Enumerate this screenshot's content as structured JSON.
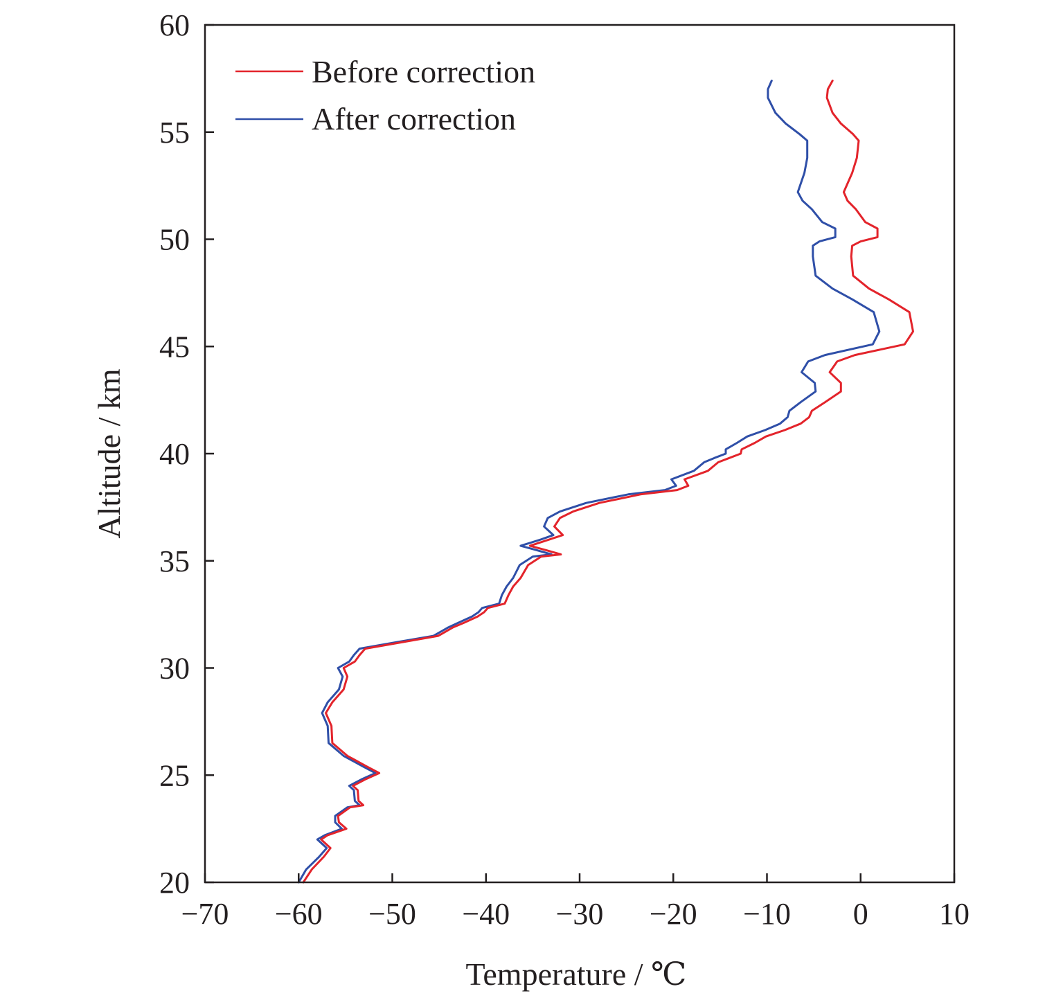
{
  "chart_data": {
    "type": "line",
    "xlabel": "Temperature / ℃",
    "ylabel": "Altitude / km",
    "xlim": [
      -70,
      10
    ],
    "ylim": [
      20,
      60
    ],
    "xticks": [
      "−70",
      "−60",
      "−50",
      "−40",
      "−30",
      "−20",
      "−10",
      "0",
      "10"
    ],
    "yticks": [
      "20",
      "25",
      "30",
      "35",
      "40",
      "45",
      "50",
      "55",
      "60"
    ],
    "legend": "top-left",
    "grid": false,
    "series": [
      {
        "name": "Before correction",
        "color": "#e3242b",
        "points": [
          [
            -59.5,
            20.0
          ],
          [
            -58.6,
            20.6
          ],
          [
            -57.3,
            21.2
          ],
          [
            -56.6,
            21.6
          ],
          [
            -57.6,
            22.0
          ],
          [
            -56.9,
            22.2
          ],
          [
            -54.9,
            22.5
          ],
          [
            -55.7,
            22.8
          ],
          [
            -55.8,
            23.1
          ],
          [
            -54.5,
            23.5
          ],
          [
            -53.1,
            23.6
          ],
          [
            -53.6,
            23.8
          ],
          [
            -53.7,
            24.3
          ],
          [
            -54.2,
            24.5
          ],
          [
            -52.9,
            24.8
          ],
          [
            -51.4,
            25.1
          ],
          [
            -52.7,
            25.4
          ],
          [
            -54.8,
            25.9
          ],
          [
            -56.4,
            26.5
          ],
          [
            -56.5,
            27.3
          ],
          [
            -57.1,
            27.9
          ],
          [
            -56.4,
            28.4
          ],
          [
            -55.2,
            29.0
          ],
          [
            -54.8,
            29.6
          ],
          [
            -55.2,
            30.0
          ],
          [
            -54.0,
            30.3
          ],
          [
            -53.5,
            30.6
          ],
          [
            -52.9,
            30.9
          ],
          [
            -49.0,
            31.2
          ],
          [
            -45.1,
            31.5
          ],
          [
            -43.5,
            31.9
          ],
          [
            -42.4,
            32.1
          ],
          [
            -40.9,
            32.4
          ],
          [
            -40.2,
            32.6
          ],
          [
            -39.8,
            32.8
          ],
          [
            -38.0,
            33.0
          ],
          [
            -37.6,
            33.4
          ],
          [
            -37.1,
            33.8
          ],
          [
            -36.3,
            34.2
          ],
          [
            -35.5,
            34.8
          ],
          [
            -34.1,
            35.2
          ],
          [
            -32.0,
            35.3
          ],
          [
            -33.6,
            35.5
          ],
          [
            -35.3,
            35.7
          ],
          [
            -33.2,
            36.0
          ],
          [
            -31.8,
            36.2
          ],
          [
            -32.7,
            36.6
          ],
          [
            -32.1,
            37.0
          ],
          [
            -30.7,
            37.3
          ],
          [
            -27.9,
            37.7
          ],
          [
            -23.5,
            38.1
          ],
          [
            -19.6,
            38.3
          ],
          [
            -18.4,
            38.5
          ],
          [
            -18.8,
            38.8
          ],
          [
            -16.3,
            39.2
          ],
          [
            -15.2,
            39.6
          ],
          [
            -14.0,
            39.8
          ],
          [
            -12.8,
            40.0
          ],
          [
            -12.7,
            40.2
          ],
          [
            -11.3,
            40.5
          ],
          [
            -10.1,
            40.8
          ],
          [
            -8.1,
            41.1
          ],
          [
            -6.4,
            41.4
          ],
          [
            -5.5,
            41.7
          ],
          [
            -5.2,
            42.0
          ],
          [
            -3.8,
            42.4
          ],
          [
            -2.1,
            42.9
          ],
          [
            -2.1,
            43.3
          ],
          [
            -3.3,
            43.8
          ],
          [
            -2.5,
            44.3
          ],
          [
            -0.6,
            44.6
          ],
          [
            4.7,
            45.1
          ],
          [
            5.6,
            45.7
          ],
          [
            5.2,
            46.6
          ],
          [
            3.0,
            47.2
          ],
          [
            0.9,
            47.7
          ],
          [
            -0.8,
            48.3
          ],
          [
            -1.0,
            49.2
          ],
          [
            -0.9,
            49.7
          ],
          [
            0.0,
            49.9
          ],
          [
            1.8,
            50.1
          ],
          [
            1.8,
            50.5
          ],
          [
            0.5,
            50.8
          ],
          [
            -0.5,
            51.4
          ],
          [
            -1.4,
            51.8
          ],
          [
            -1.8,
            52.2
          ],
          [
            -0.9,
            53.1
          ],
          [
            -0.4,
            53.8
          ],
          [
            -0.2,
            54.6
          ],
          [
            -0.8,
            54.9
          ],
          [
            -2.1,
            55.4
          ],
          [
            -3.0,
            55.9
          ],
          [
            -3.6,
            56.6
          ],
          [
            -3.5,
            57.0
          ],
          [
            -3.0,
            57.4
          ]
        ]
      },
      {
        "name": "After correction",
        "color": "#2f4fa8",
        "points": [
          [
            -60.0,
            20.0
          ],
          [
            -59.2,
            20.6
          ],
          [
            -57.8,
            21.2
          ],
          [
            -57.0,
            21.6
          ],
          [
            -58.0,
            22.0
          ],
          [
            -57.2,
            22.2
          ],
          [
            -55.4,
            22.5
          ],
          [
            -56.1,
            22.8
          ],
          [
            -56.1,
            23.1
          ],
          [
            -54.8,
            23.5
          ],
          [
            -53.5,
            23.6
          ],
          [
            -54.0,
            23.8
          ],
          [
            -54.1,
            24.3
          ],
          [
            -54.6,
            24.5
          ],
          [
            -53.3,
            24.8
          ],
          [
            -51.8,
            25.1
          ],
          [
            -53.1,
            25.4
          ],
          [
            -55.2,
            25.9
          ],
          [
            -56.8,
            26.5
          ],
          [
            -56.9,
            27.3
          ],
          [
            -57.5,
            27.9
          ],
          [
            -56.9,
            28.4
          ],
          [
            -55.7,
            29.0
          ],
          [
            -55.3,
            29.6
          ],
          [
            -55.8,
            30.0
          ],
          [
            -54.6,
            30.3
          ],
          [
            -54.1,
            30.6
          ],
          [
            -53.5,
            30.9
          ],
          [
            -49.6,
            31.2
          ],
          [
            -45.6,
            31.5
          ],
          [
            -44.0,
            31.9
          ],
          [
            -43.0,
            32.1
          ],
          [
            -41.5,
            32.4
          ],
          [
            -40.8,
            32.6
          ],
          [
            -40.4,
            32.8
          ],
          [
            -38.6,
            33.0
          ],
          [
            -38.3,
            33.4
          ],
          [
            -37.8,
            33.8
          ],
          [
            -37.1,
            34.2
          ],
          [
            -36.4,
            34.8
          ],
          [
            -35.0,
            35.2
          ],
          [
            -33.0,
            35.3
          ],
          [
            -34.6,
            35.5
          ],
          [
            -36.3,
            35.7
          ],
          [
            -34.1,
            36.0
          ],
          [
            -32.8,
            36.2
          ],
          [
            -33.8,
            36.6
          ],
          [
            -33.4,
            37.0
          ],
          [
            -32.1,
            37.3
          ],
          [
            -29.3,
            37.7
          ],
          [
            -24.8,
            38.1
          ],
          [
            -20.9,
            38.3
          ],
          [
            -19.7,
            38.5
          ],
          [
            -20.2,
            38.8
          ],
          [
            -17.8,
            39.2
          ],
          [
            -16.7,
            39.6
          ],
          [
            -15.6,
            39.8
          ],
          [
            -14.4,
            40.0
          ],
          [
            -14.4,
            40.2
          ],
          [
            -13.2,
            40.5
          ],
          [
            -12.1,
            40.8
          ],
          [
            -10.2,
            41.1
          ],
          [
            -8.6,
            41.4
          ],
          [
            -7.8,
            41.7
          ],
          [
            -7.6,
            42.0
          ],
          [
            -6.4,
            42.4
          ],
          [
            -4.8,
            42.9
          ],
          [
            -4.9,
            43.3
          ],
          [
            -6.3,
            43.8
          ],
          [
            -5.6,
            44.3
          ],
          [
            -3.8,
            44.6
          ],
          [
            1.3,
            45.1
          ],
          [
            2.0,
            45.7
          ],
          [
            1.4,
            46.6
          ],
          [
            -0.9,
            47.2
          ],
          [
            -3.0,
            47.7
          ],
          [
            -4.8,
            48.3
          ],
          [
            -5.1,
            49.2
          ],
          [
            -5.1,
            49.7
          ],
          [
            -4.4,
            49.9
          ],
          [
            -2.7,
            50.1
          ],
          [
            -2.7,
            50.5
          ],
          [
            -4.1,
            50.8
          ],
          [
            -5.2,
            51.4
          ],
          [
            -6.2,
            51.8
          ],
          [
            -6.7,
            52.2
          ],
          [
            -6.0,
            53.1
          ],
          [
            -5.7,
            53.8
          ],
          [
            -5.7,
            54.6
          ],
          [
            -6.5,
            54.9
          ],
          [
            -8.0,
            55.4
          ],
          [
            -9.1,
            55.9
          ],
          [
            -9.9,
            56.6
          ],
          [
            -9.9,
            57.0
          ],
          [
            -9.5,
            57.4
          ]
        ]
      }
    ]
  }
}
